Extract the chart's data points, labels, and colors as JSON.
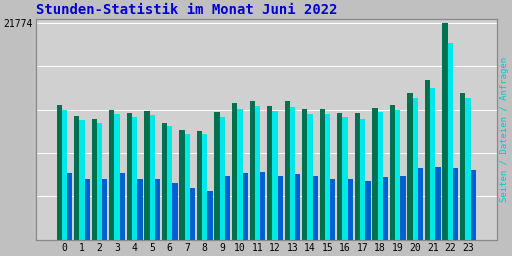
{
  "title": "Stunden-Statistik im Monat Juni 2022",
  "title_color": "#0000cc",
  "title_fontsize": 10,
  "ylabel_right": "Seiten / Dateien / Anfragen",
  "ylabel_right_color": "#00cccc",
  "hours": [
    0,
    1,
    2,
    3,
    4,
    5,
    6,
    7,
    8,
    9,
    10,
    11,
    12,
    13,
    14,
    15,
    16,
    17,
    18,
    19,
    20,
    21,
    22,
    23
  ],
  "ytick_label": "21774",
  "ytick_value": 21774,
  "background_color": "#c0c0c0",
  "plot_bg_color": "#d0d0d0",
  "bar_colors": [
    "#007050",
    "#00e8e8",
    "#0060d0"
  ],
  "seiten": [
    13500,
    12400,
    12100,
    13000,
    12700,
    12900,
    11700,
    11000,
    10900,
    12800,
    13700,
    13900,
    13400,
    13900,
    13100,
    13100,
    12700,
    12700,
    13200,
    13500,
    14700,
    16000,
    21774,
    14700
  ],
  "dateien": [
    13000,
    12000,
    11700,
    12600,
    12300,
    12500,
    11400,
    10600,
    10600,
    12300,
    13100,
    13400,
    12900,
    13300,
    12600,
    12600,
    12300,
    12100,
    12800,
    13000,
    14200,
    15200,
    19800,
    14200
  ],
  "anfragen": [
    6700,
    6100,
    6100,
    6700,
    6100,
    6100,
    5700,
    5200,
    4900,
    6400,
    6700,
    6800,
    6400,
    6600,
    6400,
    6100,
    6100,
    5900,
    6300,
    6400,
    7200,
    7300,
    7200,
    7000
  ]
}
